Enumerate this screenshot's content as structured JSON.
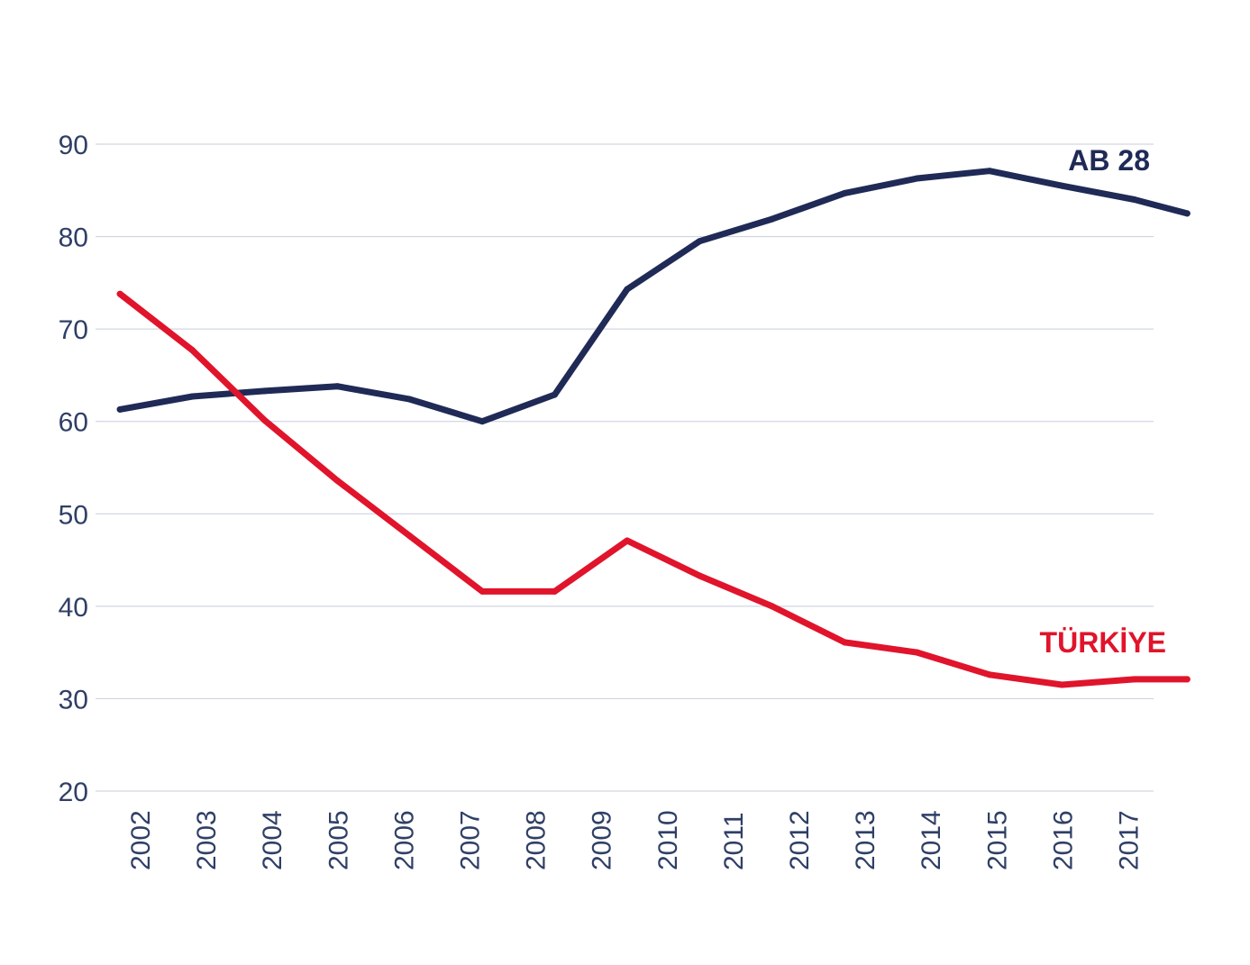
{
  "chart_data": {
    "type": "line",
    "title": "",
    "xlabel": "",
    "ylabel": "",
    "categories": [
      "2002",
      "2003",
      "2004",
      "2005",
      "2006",
      "2007",
      "2008",
      "2009",
      "2010",
      "2011",
      "2012",
      "2013",
      "2014",
      "2015",
      "2016",
      "2017"
    ],
    "x": [
      2002,
      2003,
      2004,
      2005,
      2006,
      2007,
      2008,
      2009,
      2010,
      2011,
      2012,
      2013,
      2014,
      2015,
      2016,
      2017
    ],
    "ylim": [
      20,
      90
    ],
    "yticks": [
      20,
      30,
      40,
      50,
      60,
      70,
      80,
      90
    ],
    "grid": true,
    "legend": "inline labels at right end of lines",
    "series": [
      {
        "name": "AB 28",
        "color": "#1f2a56",
        "label_color": "#1f2a56",
        "x": [
          2001.7,
          2002.8,
          2003.9,
          2005.0,
          2006.1,
          2007.2,
          2008.3,
          2009.4,
          2010.5,
          2011.6,
          2012.7,
          2013.8,
          2014.9,
          2016.0,
          2017.1,
          2017.9
        ],
        "values": [
          61.3,
          62.7,
          63.3,
          63.8,
          62.4,
          60.0,
          62.9,
          74.3,
          79.5,
          81.9,
          84.7,
          86.3,
          87.1,
          85.5,
          84.0,
          82.5
        ]
      },
      {
        "name": "TÜRKİYE",
        "color": "#e0142b",
        "label_color": "#e0142b",
        "x": [
          2001.7,
          2002.8,
          2003.9,
          2005.0,
          2006.1,
          2007.2,
          2008.3,
          2009.4,
          2010.5,
          2011.6,
          2012.7,
          2013.8,
          2014.9,
          2016.0,
          2017.1,
          2017.9
        ],
        "values": [
          73.8,
          67.7,
          60.1,
          53.6,
          47.6,
          41.6,
          41.6,
          47.1,
          43.3,
          40.0,
          36.1,
          35.0,
          32.6,
          31.5,
          32.1,
          32.1
        ]
      }
    ]
  }
}
